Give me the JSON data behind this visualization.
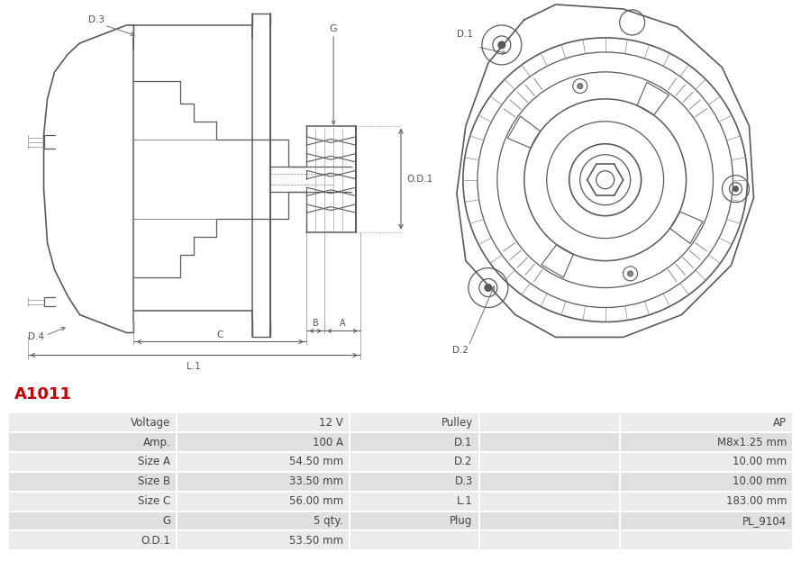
{
  "title": "A1011",
  "title_color": "#cc0000",
  "bg_color": "#ffffff",
  "table_rows": [
    [
      "Voltage",
      "12 V",
      "Pulley",
      "AP"
    ],
    [
      "Amp.",
      "100 A",
      "D.1",
      "M8x1.25 mm"
    ],
    [
      "Size A",
      "54.50 mm",
      "D.2",
      "10.00 mm"
    ],
    [
      "Size B",
      "33.50 mm",
      "D.3",
      "10.00 mm"
    ],
    [
      "Size C",
      "56.00 mm",
      "L.1",
      "183.00 mm"
    ],
    [
      "G",
      "5 qty.",
      "Plug",
      "PL_9104"
    ],
    [
      "O.D.1",
      "53.50 mm",
      "",
      ""
    ]
  ],
  "row_bg_even": "#ebebeb",
  "row_bg_odd": "#e0e0e0",
  "cell_text_color": "#444444",
  "label_color": "#555555",
  "diagram_line_color": "#5a5a5a",
  "diagram_line_color2": "#888888"
}
